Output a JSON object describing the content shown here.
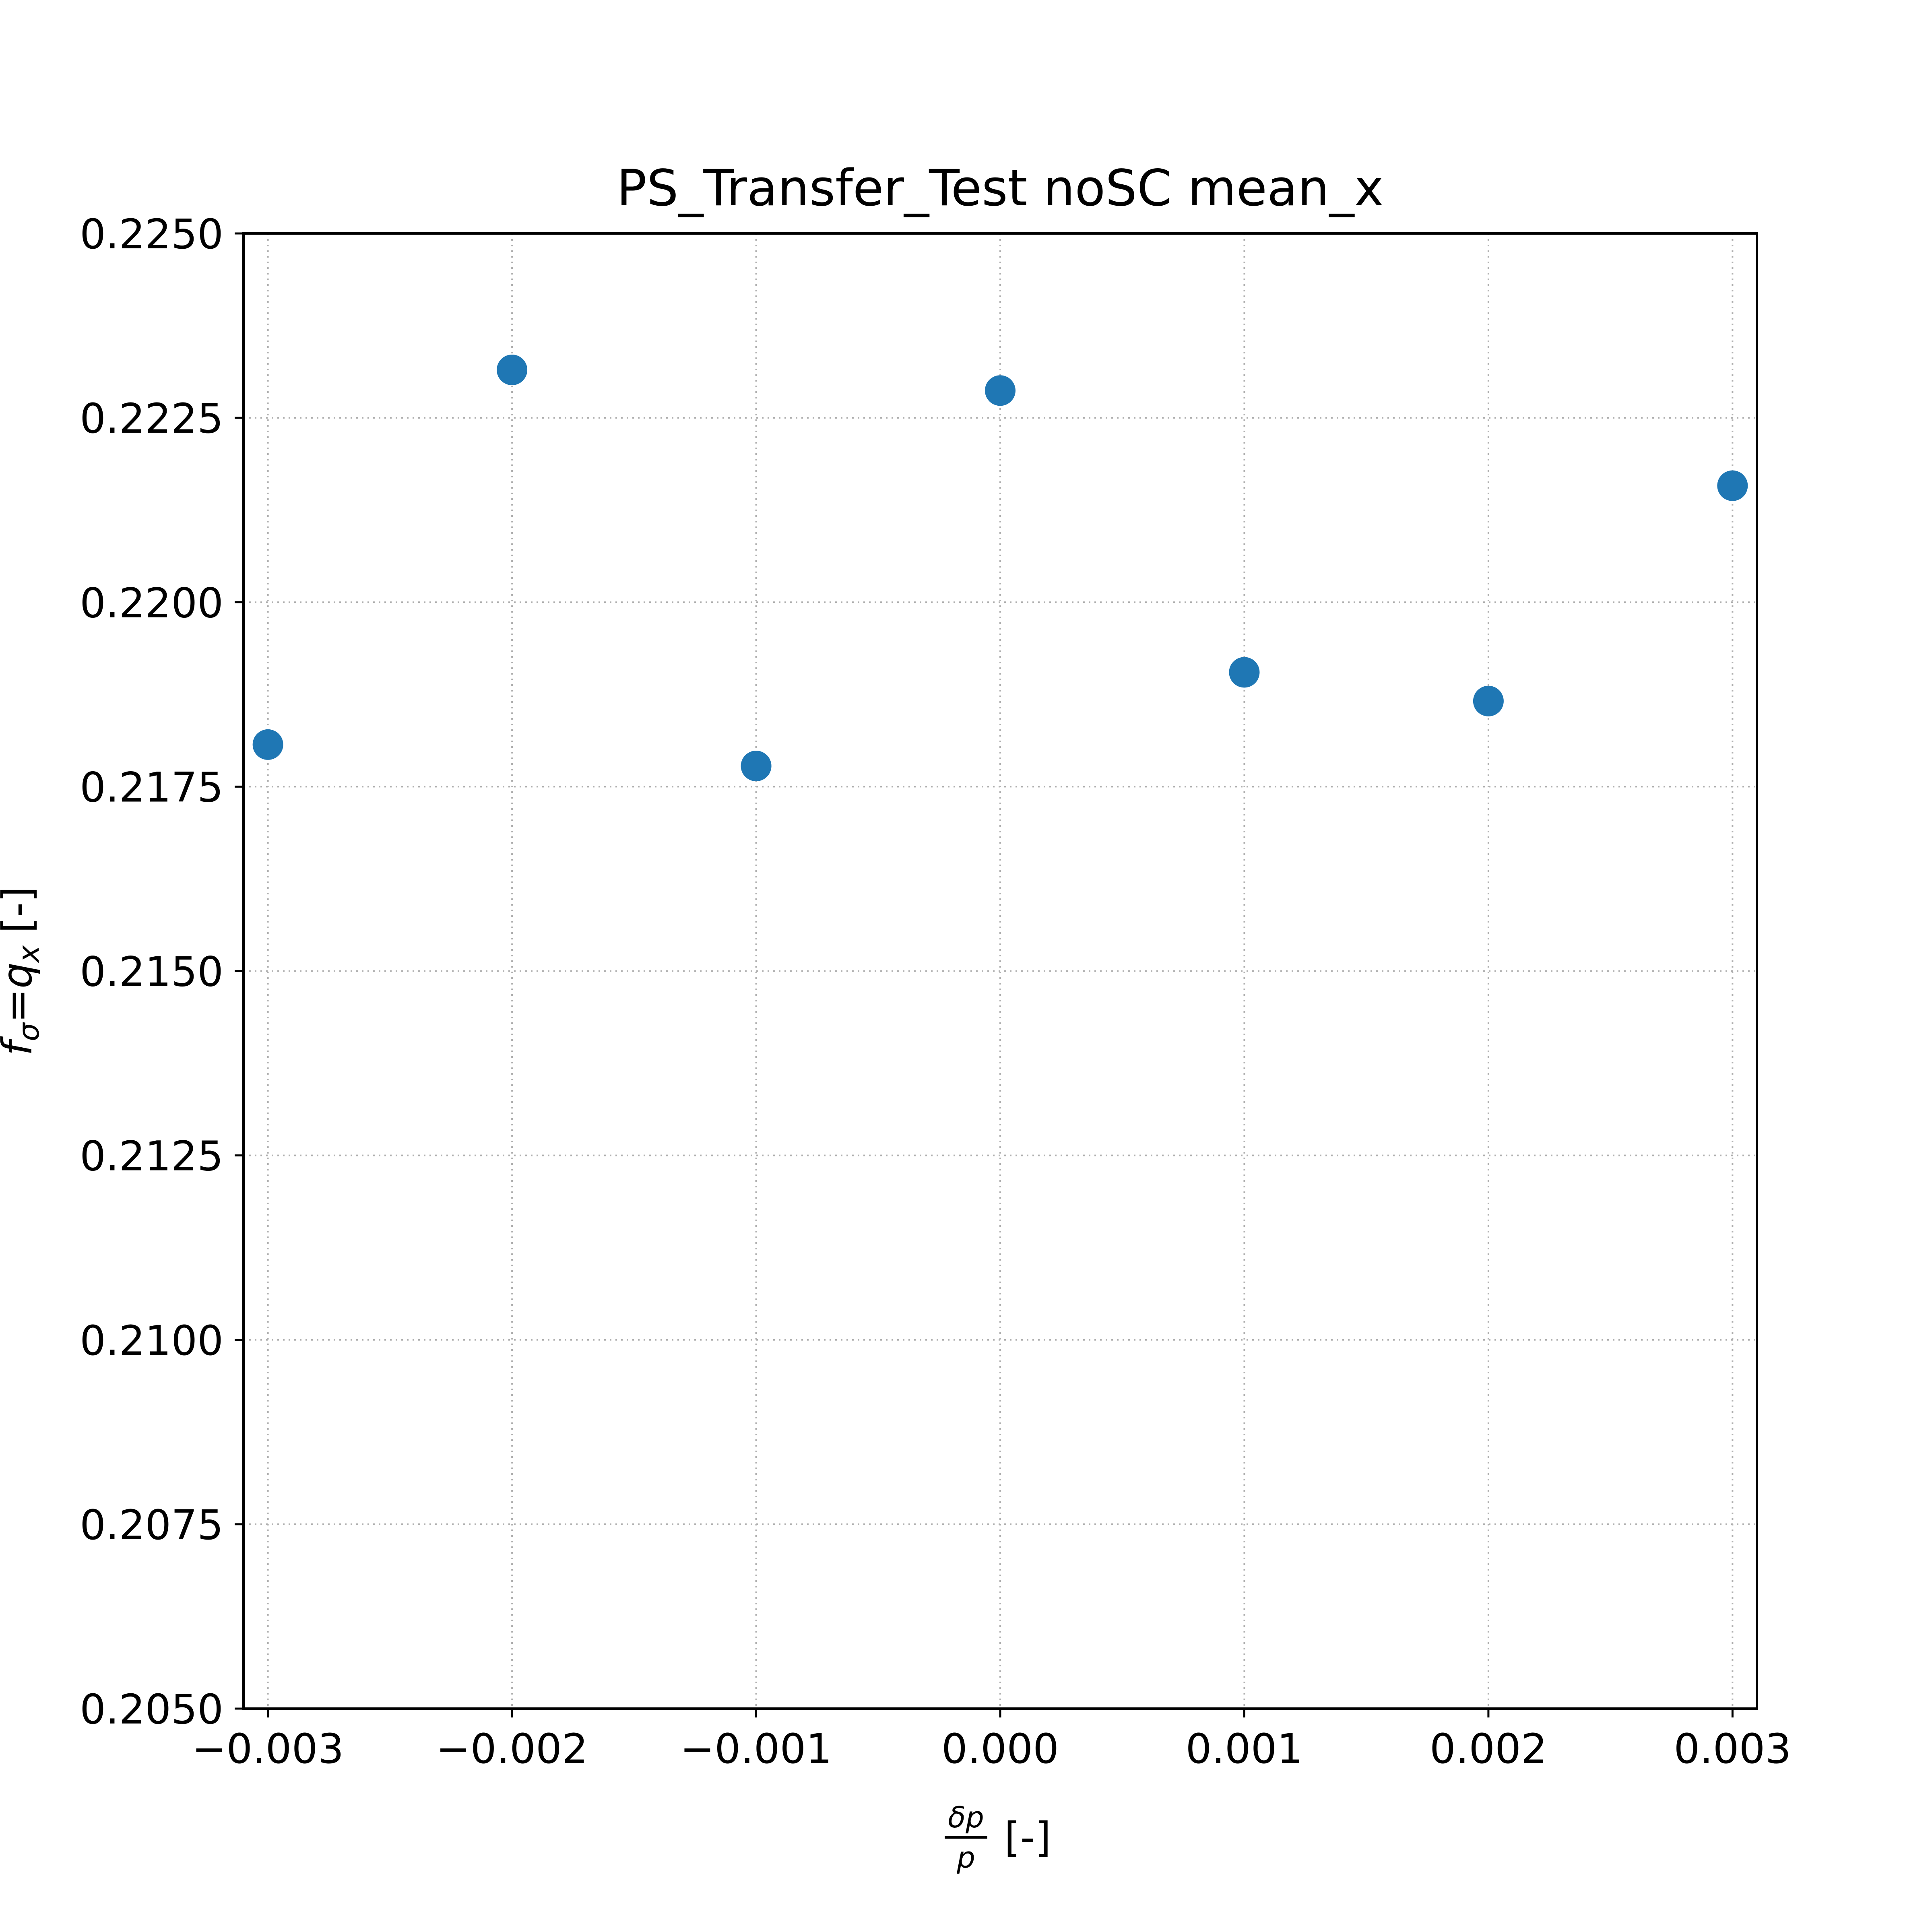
{
  "chart_data": {
    "type": "scatter",
    "title": "PS_Transfer_Test noSC mean_x",
    "xlabel": {
      "fraction_numerator": "δp",
      "fraction_denominator": "p",
      "suffix": "[-]"
    },
    "ylabel": {
      "symbol": "f",
      "symbol_subscript": "σ",
      "equals": "=",
      "rhs": "q",
      "rhs_subscript": "x",
      "suffix": "[-]"
    },
    "xlim": [
      -0.0031,
      0.0031
    ],
    "ylim": [
      0.205,
      0.225
    ],
    "x_ticks": [
      -0.003,
      -0.002,
      -0.001,
      0.0,
      0.001,
      0.002,
      0.003
    ],
    "x_tick_labels": [
      "−0.003",
      "−0.002",
      "−0.001",
      "0.000",
      "0.001",
      "0.002",
      "0.003"
    ],
    "y_ticks": [
      0.205,
      0.2075,
      0.21,
      0.2125,
      0.215,
      0.2175,
      0.22,
      0.2225,
      0.225
    ],
    "y_tick_labels": [
      "0.2050",
      "0.2075",
      "0.2100",
      "0.2125",
      "0.2150",
      "0.2175",
      "0.2200",
      "0.2225",
      "0.2250"
    ],
    "grid": true,
    "marker_color": "#1f77b4",
    "series": [
      {
        "x": [
          -0.003,
          -0.002,
          -0.001,
          0.0,
          0.001,
          0.002,
          0.003
        ],
        "y": [
          0.21807,
          0.22315,
          0.21778,
          0.22287,
          0.21905,
          0.21866,
          0.22158
        ]
      }
    ]
  }
}
